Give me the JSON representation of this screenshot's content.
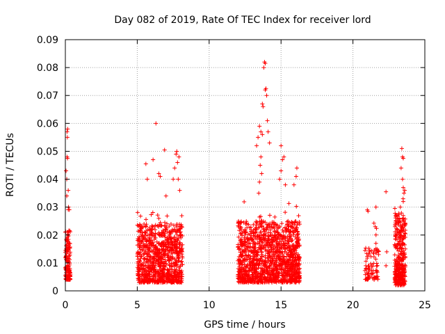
{
  "chart_data": {
    "type": "scatter",
    "title": "Day 082 of 2019, Rate Of TEC Index for receiver lord",
    "xlabel": "GPS time / hours",
    "ylabel": "ROTI / TECUs",
    "xlim": [
      0,
      25
    ],
    "ylim": [
      0,
      0.09
    ],
    "xticks": [
      0,
      5,
      10,
      15,
      20,
      25
    ],
    "xtick_labels": [
      "0",
      "5",
      "10",
      "15",
      "20",
      "25"
    ],
    "yticks": [
      0,
      0.01,
      0.02,
      0.03,
      0.04,
      0.05,
      0.06,
      0.07,
      0.08,
      0.09
    ],
    "ytick_labels": [
      "0",
      "0.01",
      "0.02",
      "0.03",
      "0.04",
      "0.05",
      "0.06",
      "0.07",
      "0.08",
      "0.09"
    ],
    "grid": true,
    "marker": "+",
    "color": "#ff0000",
    "clusters": [
      {
        "x_range": [
          0.0,
          0.35
        ],
        "y_base": [
          0.004,
          0.022
        ],
        "count": 140
      },
      {
        "x_range": [
          5.0,
          8.15
        ],
        "y_base": [
          0.003,
          0.024
        ],
        "count": 900
      },
      {
        "x_range": [
          12.0,
          16.3
        ],
        "y_base": [
          0.003,
          0.025
        ],
        "count": 1300
      },
      {
        "x_range": [
          20.8,
          21.8
        ],
        "y_base": [
          0.004,
          0.016
        ],
        "count": 90
      },
      {
        "x_range": [
          22.9,
          23.65
        ],
        "y_base": [
          0.002,
          0.028
        ],
        "count": 330
      }
    ],
    "highlights": [
      {
        "x": 0.05,
        "y": 0.043
      },
      {
        "x": 0.1,
        "y": 0.04
      },
      {
        "x": 0.12,
        "y": 0.048
      },
      {
        "x": 0.15,
        "y": 0.0475
      },
      {
        "x": 0.12,
        "y": 0.057
      },
      {
        "x": 0.16,
        "y": 0.058
      },
      {
        "x": 0.14,
        "y": 0.055
      },
      {
        "x": 0.1,
        "y": 0.034
      },
      {
        "x": 0.2,
        "y": 0.036
      },
      {
        "x": 0.22,
        "y": 0.03
      },
      {
        "x": 5.6,
        "y": 0.0455
      },
      {
        "x": 5.7,
        "y": 0.04
      },
      {
        "x": 6.1,
        "y": 0.047
      },
      {
        "x": 6.3,
        "y": 0.06
      },
      {
        "x": 6.5,
        "y": 0.042
      },
      {
        "x": 6.6,
        "y": 0.041
      },
      {
        "x": 6.9,
        "y": 0.0505
      },
      {
        "x": 7.0,
        "y": 0.034
      },
      {
        "x": 7.5,
        "y": 0.04
      },
      {
        "x": 7.6,
        "y": 0.044
      },
      {
        "x": 7.7,
        "y": 0.049
      },
      {
        "x": 7.75,
        "y": 0.05
      },
      {
        "x": 7.8,
        "y": 0.046
      },
      {
        "x": 7.9,
        "y": 0.048
      },
      {
        "x": 7.85,
        "y": 0.04
      },
      {
        "x": 7.95,
        "y": 0.036
      },
      {
        "x": 13.3,
        "y": 0.052
      },
      {
        "x": 13.4,
        "y": 0.055
      },
      {
        "x": 13.5,
        "y": 0.059
      },
      {
        "x": 13.6,
        "y": 0.057
      },
      {
        "x": 13.7,
        "y": 0.056
      },
      {
        "x": 13.7,
        "y": 0.067
      },
      {
        "x": 13.75,
        "y": 0.066
      },
      {
        "x": 13.8,
        "y": 0.08
      },
      {
        "x": 13.85,
        "y": 0.082
      },
      {
        "x": 13.9,
        "y": 0.0815
      },
      {
        "x": 13.9,
        "y": 0.072
      },
      {
        "x": 13.95,
        "y": 0.0725
      },
      {
        "x": 14.0,
        "y": 0.07
      },
      {
        "x": 14.05,
        "y": 0.061
      },
      {
        "x": 14.1,
        "y": 0.057
      },
      {
        "x": 14.2,
        "y": 0.053
      },
      {
        "x": 13.6,
        "y": 0.048
      },
      {
        "x": 13.55,
        "y": 0.045
      },
      {
        "x": 13.65,
        "y": 0.042
      },
      {
        "x": 15.0,
        "y": 0.052
      },
      {
        "x": 15.1,
        "y": 0.047
      },
      {
        "x": 15.2,
        "y": 0.048
      },
      {
        "x": 15.0,
        "y": 0.043
      },
      {
        "x": 14.9,
        "y": 0.04
      },
      {
        "x": 15.3,
        "y": 0.038
      },
      {
        "x": 16.1,
        "y": 0.044
      },
      {
        "x": 16.05,
        "y": 0.041
      },
      {
        "x": 15.9,
        "y": 0.038
      },
      {
        "x": 13.5,
        "y": 0.039
      },
      {
        "x": 13.45,
        "y": 0.035
      },
      {
        "x": 21.0,
        "y": 0.029
      },
      {
        "x": 21.05,
        "y": 0.0285
      },
      {
        "x": 21.6,
        "y": 0.03
      },
      {
        "x": 21.55,
        "y": 0.023
      },
      {
        "x": 21.6,
        "y": 0.017
      },
      {
        "x": 22.3,
        "y": 0.0355
      },
      {
        "x": 22.35,
        "y": 0.014
      },
      {
        "x": 22.3,
        "y": 0.009
      },
      {
        "x": 23.4,
        "y": 0.051
      },
      {
        "x": 23.45,
        "y": 0.048
      },
      {
        "x": 23.5,
        "y": 0.0475
      },
      {
        "x": 23.35,
        "y": 0.044
      },
      {
        "x": 23.45,
        "y": 0.04
      },
      {
        "x": 23.5,
        "y": 0.037
      },
      {
        "x": 23.6,
        "y": 0.036
      },
      {
        "x": 23.55,
        "y": 0.035
      },
      {
        "x": 23.5,
        "y": 0.032
      },
      {
        "x": 23.3,
        "y": 0.03
      }
    ]
  }
}
